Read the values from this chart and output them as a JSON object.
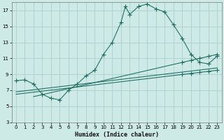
{
  "title": "",
  "xlabel": "Humidex (Indice chaleur)",
  "bg_color": "#ceeae7",
  "grid_color": "#aacfcc",
  "line_color": "#1a6b5e",
  "xlim": [
    -0.5,
    23.5
  ],
  "ylim": [
    3,
    18
  ],
  "xticks": [
    0,
    1,
    2,
    3,
    4,
    5,
    6,
    7,
    8,
    9,
    10,
    11,
    12,
    13,
    14,
    15,
    16,
    17,
    18,
    19,
    20,
    21,
    22,
    23
  ],
  "yticks": [
    3,
    5,
    7,
    9,
    11,
    13,
    15,
    17
  ],
  "main_curve_x": [
    0,
    1,
    2,
    3,
    4,
    5,
    6,
    7,
    8,
    9,
    10,
    11,
    12,
    12.5,
    13,
    14,
    15,
    16,
    17,
    18,
    19,
    20,
    21,
    22,
    23
  ],
  "main_curve_y": [
    8.2,
    8.3,
    7.8,
    6.5,
    6.0,
    5.8,
    7.0,
    7.8,
    8.8,
    9.5,
    11.5,
    13.0,
    15.5,
    17.5,
    16.5,
    17.5,
    17.8,
    17.2,
    16.8,
    15.2,
    13.5,
    11.5,
    10.5,
    10.3,
    11.3
  ],
  "line1_x": [
    0,
    23
  ],
  "line1_y": [
    6.5,
    9.5
  ],
  "line2_x": [
    0,
    23
  ],
  "line2_y": [
    6.8,
    9.8
  ],
  "line3_x": [
    2,
    23
  ],
  "line3_y": [
    6.2,
    11.5
  ],
  "refline_markers_x": [
    2,
    19,
    20,
    21,
    22,
    23
  ],
  "refline_markers_y": [
    6.2,
    9.2,
    9.5,
    9.8,
    10.2,
    11.5
  ]
}
